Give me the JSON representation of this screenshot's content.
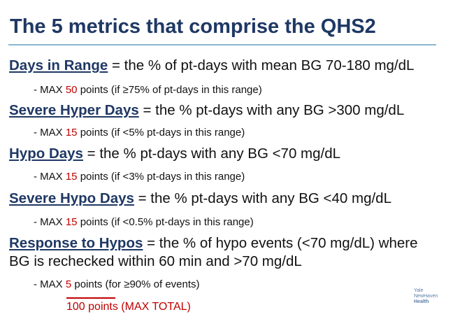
{
  "title": "The 5 metrics that comprise the QHS2",
  "metrics": [
    {
      "term": "Days in Range",
      "definition": " = the % of pt-days with mean BG 70-180 mg/dL",
      "sub_prefix": "- MAX ",
      "points": "50",
      "sub_suffix": " points (if ≥75% of pt-days in this range)"
    },
    {
      "term": "Severe Hyper Days",
      "definition": " = the % pt-days with any BG >300 mg/dL",
      "sub_prefix": "- MAX ",
      "points": "15",
      "sub_suffix": " points (if <5% pt-days in this range)"
    },
    {
      "term": "Hypo Days",
      "definition": " = the % pt-days with any BG  <70 mg/dL",
      "sub_prefix": "- MAX ",
      "points": "15",
      "sub_suffix": " points (if <3% pt-days in this range)"
    },
    {
      "term": "Severe Hypo Days",
      "definition": " = the % pt-days with any BG <40 mg/dL",
      "sub_prefix": "- MAX ",
      "points": "15",
      "sub_suffix": " points (if <0.5% pt-days in this range)"
    },
    {
      "term": "Response to Hypos",
      "definition": " = the % of hypo events (<70 mg/dL) where",
      "definition_line2": "BG is rechecked within 60 min and >70 mg/dL",
      "sub_prefix": "- MAX  ",
      "points": "5",
      "sub_suffix": " points (for ≥90% of events)"
    }
  ],
  "total": "100 points (MAX TOTAL)",
  "logo": {
    "line1": "Yale",
    "line2": "NewHaven",
    "line3": "Health"
  },
  "colors": {
    "title": "#1f3864",
    "accent": "#c00000",
    "rule": "#8ab6cf"
  }
}
